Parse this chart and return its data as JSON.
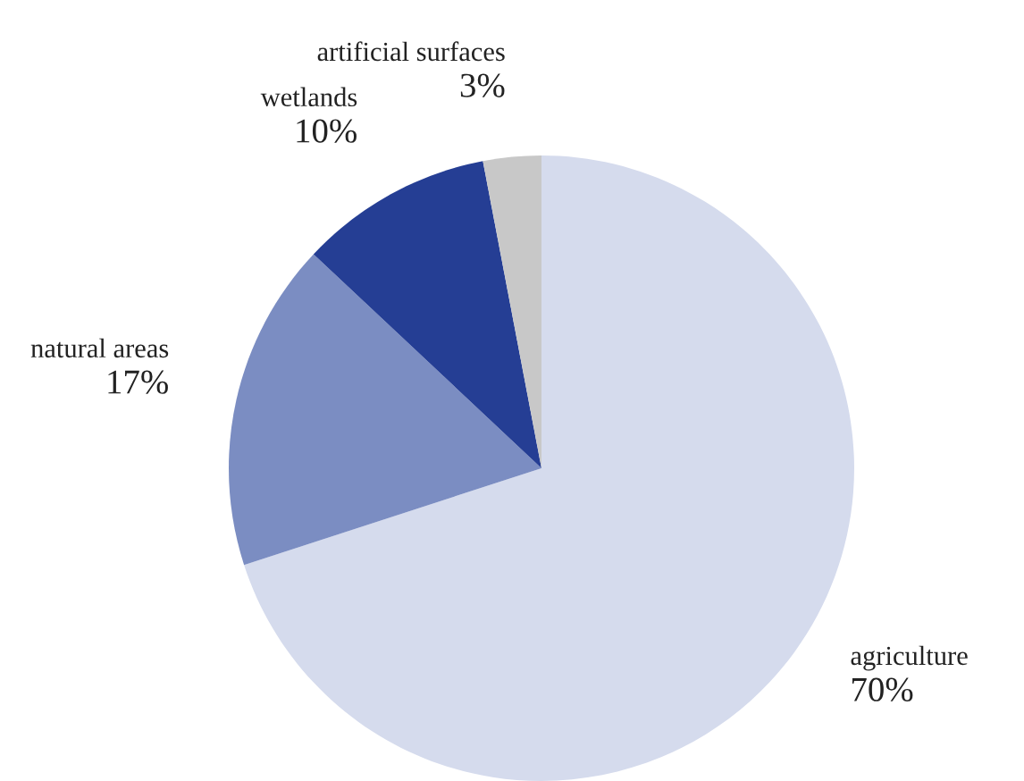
{
  "chart_data": {
    "type": "pie",
    "categories": [
      "agriculture",
      "natural areas",
      "wetlands",
      "artificial surfaces"
    ],
    "values": [
      70,
      17,
      10,
      3
    ],
    "colors": [
      "#d5dbed",
      "#7b8dc2",
      "#253e94",
      "#c8c8c8"
    ],
    "value_labels": [
      "70%",
      "17%",
      "10%",
      "3%"
    ]
  }
}
